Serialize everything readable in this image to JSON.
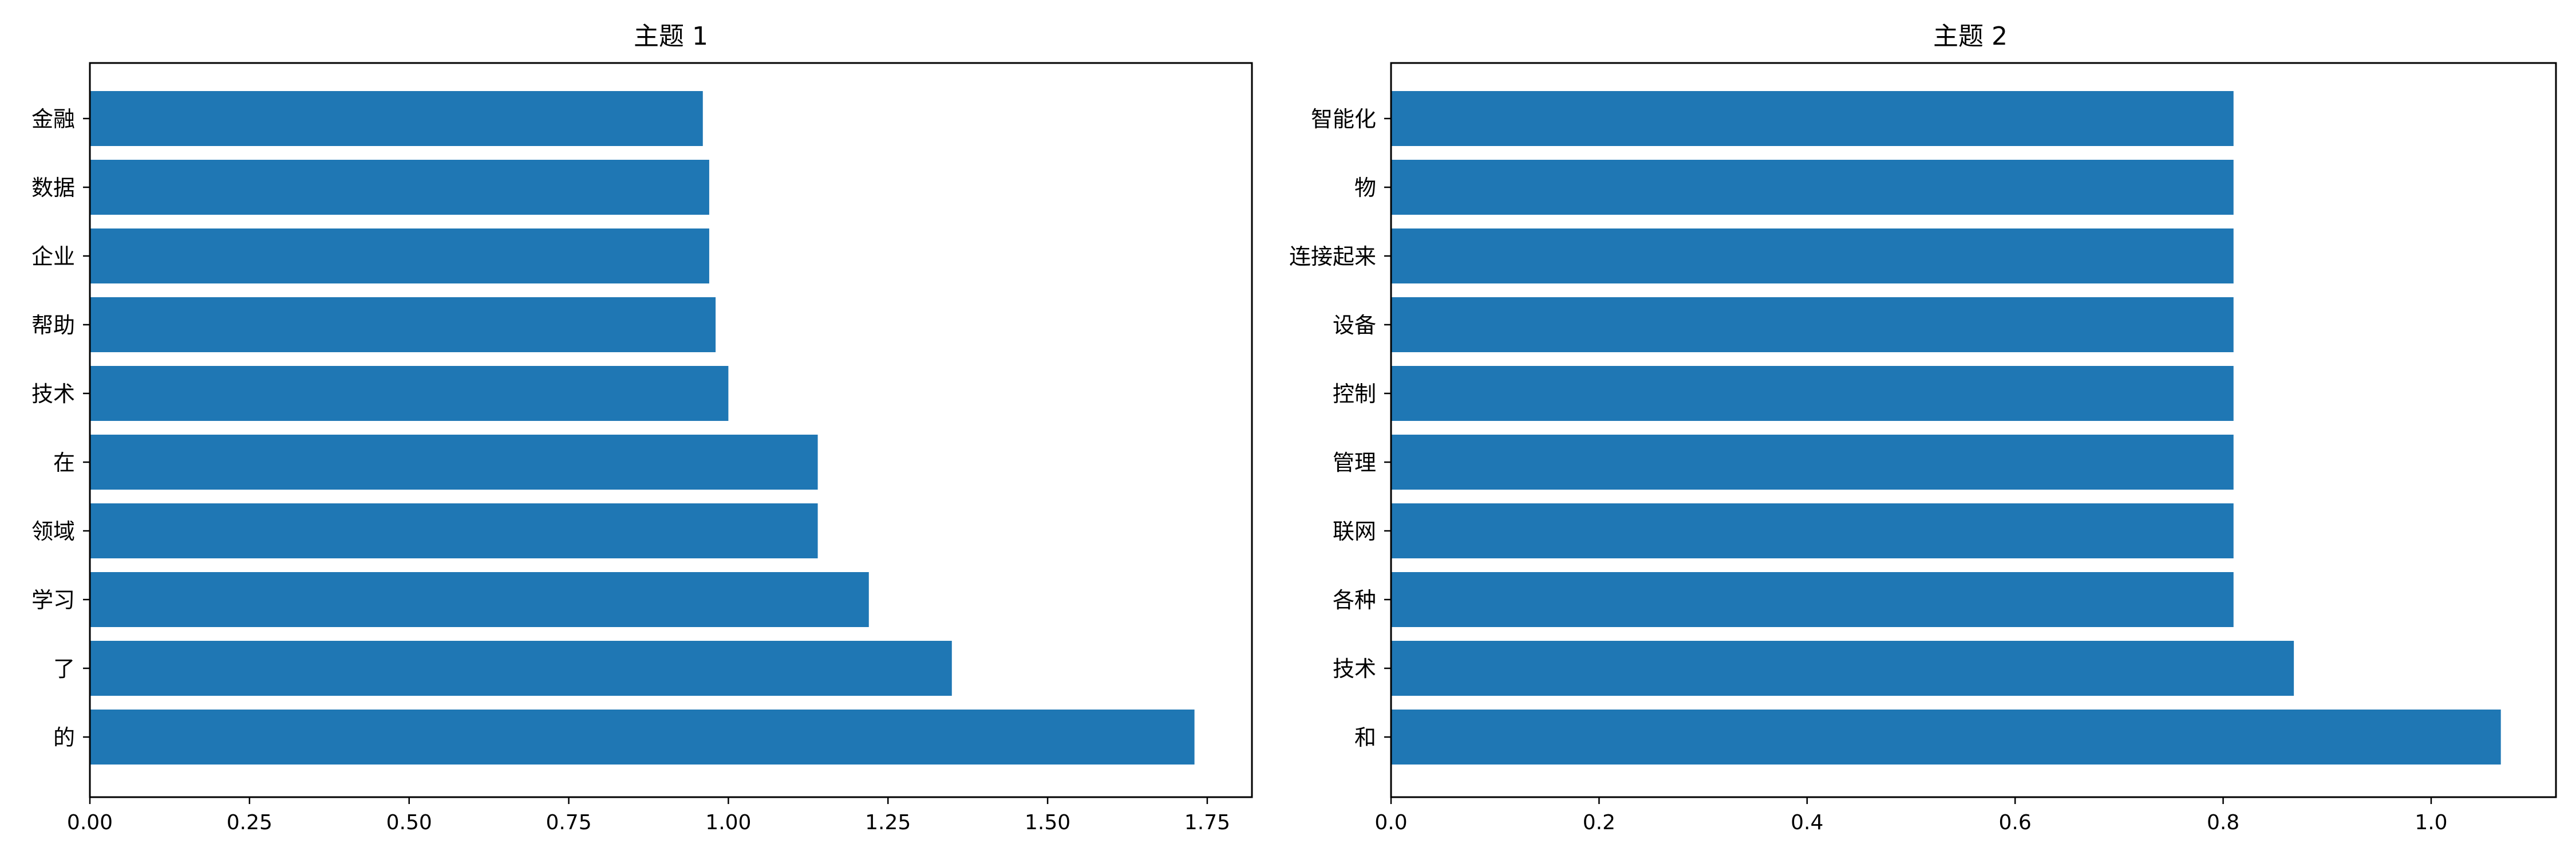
{
  "chart_data": [
    {
      "type": "bar",
      "orientation": "horizontal",
      "title": "主题 1",
      "xlabel": "",
      "ylabel": "",
      "categories": [
        "的",
        "了",
        "学习",
        "领域",
        "在",
        "技术",
        "帮助",
        "企业",
        "数据",
        "金融"
      ],
      "values": [
        1.73,
        1.35,
        1.22,
        1.14,
        1.14,
        1.0,
        0.98,
        0.97,
        0.97,
        0.96
      ],
      "xlim": [
        0,
        1.82
      ],
      "xticks": [
        0.0,
        0.25,
        0.5,
        0.75,
        1.0,
        1.25,
        1.5,
        1.75
      ],
      "xtick_labels": [
        "0.00",
        "0.25",
        "0.50",
        "0.75",
        "1.00",
        "1.25",
        "1.50",
        "1.75"
      ],
      "bar_color": "#1f77b4",
      "grid": false
    },
    {
      "type": "bar",
      "orientation": "horizontal",
      "title": "主题 2",
      "xlabel": "",
      "ylabel": "",
      "categories": [
        "和",
        "技术",
        "各种",
        "联网",
        "管理",
        "控制",
        "设备",
        "连接起来",
        "物",
        "智能化"
      ],
      "values": [
        1.067,
        0.868,
        0.81,
        0.81,
        0.81,
        0.81,
        0.81,
        0.81,
        0.81,
        0.81
      ],
      "xlim": [
        0,
        1.12
      ],
      "xticks": [
        0.0,
        0.2,
        0.4,
        0.6,
        0.8,
        1.0
      ],
      "xtick_labels": [
        "0.0",
        "0.2",
        "0.4",
        "0.6",
        "0.8",
        "1.0"
      ],
      "bar_color": "#1f77b4",
      "grid": false
    }
  ]
}
